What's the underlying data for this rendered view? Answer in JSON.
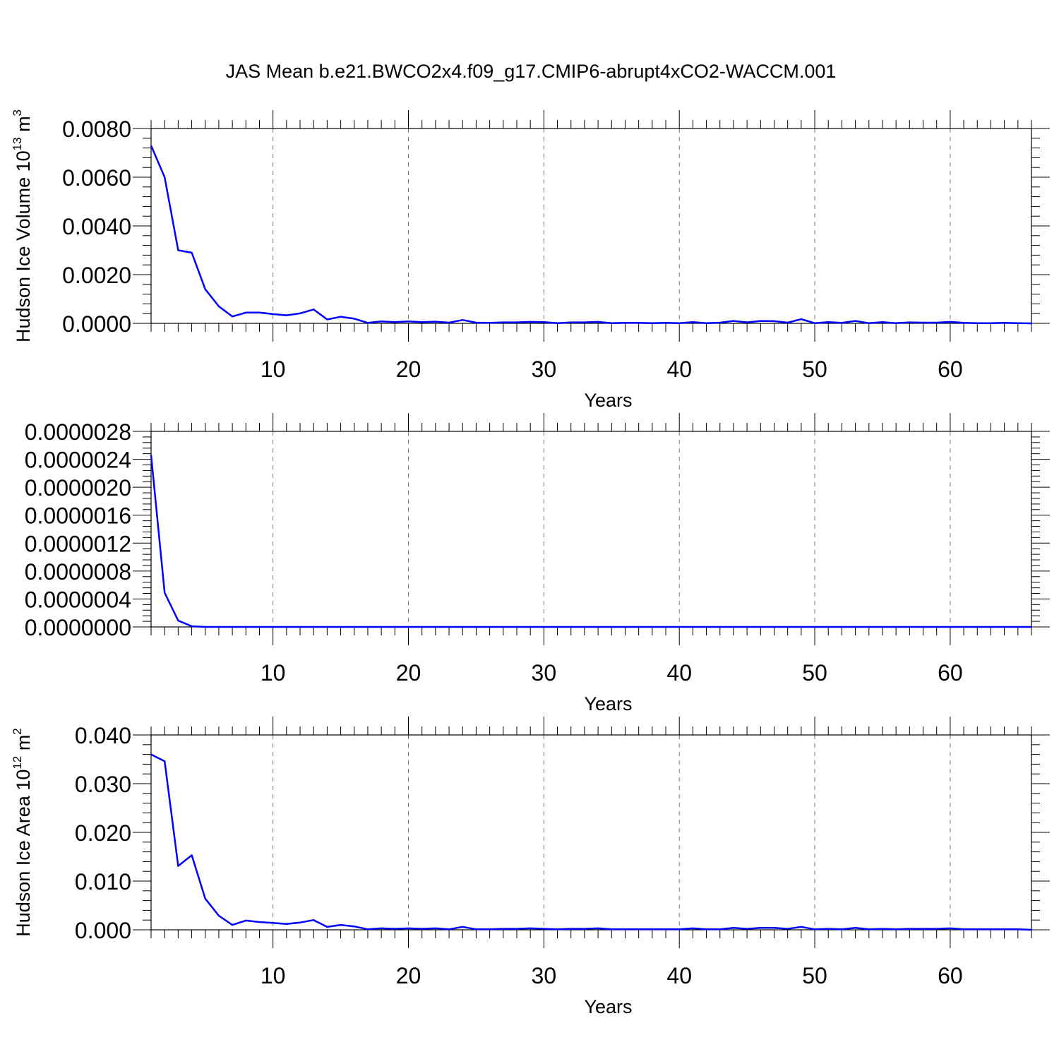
{
  "figure": {
    "title": "JAS Mean b.e21.BWCO2x4.f09_g17.CMIP6-abrupt4xCO2-WACCM.001",
    "line_color": "#0000ff"
  },
  "chart_data": [
    {
      "type": "line",
      "title": "",
      "xlabel": "Years",
      "ylabel": "Hudson Ice Volume 10",
      "ylabel_exp": "13",
      "ylabel_unit": " m",
      "ylabel_unit_exp": "3",
      "xlim": [
        1,
        66
      ],
      "ylim": [
        0,
        0.008
      ],
      "xticks": [
        10,
        20,
        30,
        40,
        50,
        60
      ],
      "yticks": [
        0,
        0.002,
        0.004,
        0.006,
        0.008
      ],
      "ytick_labels": [
        "0.0000",
        "0.0020",
        "0.0040",
        "0.0060",
        "0.0080"
      ],
      "grid": "vertical dashed",
      "series": [
        {
          "x": [
            1,
            2,
            3,
            4,
            5,
            6,
            7,
            8,
            9,
            10,
            11,
            12,
            13,
            14,
            15,
            16,
            17,
            18,
            19,
            20,
            21,
            22,
            23,
            24,
            25,
            26,
            27,
            28,
            29,
            30,
            31,
            32,
            33,
            34,
            35,
            36,
            37,
            38,
            39,
            40,
            41,
            42,
            43,
            44,
            45,
            46,
            47,
            48,
            49,
            50,
            51,
            52,
            53,
            54,
            55,
            56,
            57,
            58,
            59,
            60,
            61,
            62,
            63,
            64,
            65,
            66
          ],
          "values": [
            0.0073,
            0.006,
            0.003,
            0.0029,
            0.0014,
            0.0007,
            0.00028,
            0.00044,
            0.00044,
            0.00038,
            0.00033,
            0.00041,
            0.00057,
            0.00016,
            0.00027,
            0.00019,
            2e-05,
            8e-05,
            5e-05,
            8e-05,
            5e-05,
            7e-05,
            3e-05,
            0.00014,
            3e-05,
            2e-05,
            4e-05,
            4e-05,
            6e-05,
            5e-05,
            1e-05,
            4e-05,
            4e-05,
            6e-05,
            1e-05,
            2e-05,
            2e-05,
            1e-05,
            2e-05,
            1e-05,
            5e-05,
            1e-05,
            3e-05,
            0.0001,
            4e-05,
            0.0001,
            9e-05,
            3e-05,
            0.00017,
            1e-05,
            5e-05,
            2e-05,
            0.0001,
            1e-05,
            5e-05,
            1e-05,
            4e-05,
            3e-05,
            3e-05,
            6e-05,
            2e-05,
            1e-05,
            1e-05,
            2e-05,
            1e-05,
            0.0
          ]
        }
      ]
    },
    {
      "type": "line",
      "title": "",
      "xlabel": "Years",
      "ylabel": "",
      "xlim": [
        1,
        66
      ],
      "ylim": [
        0,
        2.8e-06
      ],
      "xticks": [
        10,
        20,
        30,
        40,
        50,
        60
      ],
      "yticks": [
        0,
        4e-07,
        8e-07,
        1.2e-06,
        1.6e-06,
        2e-06,
        2.4e-06,
        2.8e-06
      ],
      "ytick_labels": [
        "0.0000000",
        "0.0000004",
        "0.0000008",
        "0.0000012",
        "0.0000016",
        "0.0000020",
        "0.0000024",
        "0.0000028"
      ],
      "grid": "vertical dashed",
      "series": [
        {
          "x": [
            1,
            2,
            3,
            4,
            5,
            6,
            7,
            8,
            9,
            10,
            11,
            12,
            13,
            14,
            15,
            16,
            17,
            18,
            19,
            20,
            21,
            22,
            23,
            24,
            25,
            26,
            27,
            28,
            29,
            30,
            31,
            32,
            33,
            34,
            35,
            36,
            37,
            38,
            39,
            40,
            41,
            42,
            43,
            44,
            45,
            46,
            47,
            48,
            49,
            50,
            51,
            52,
            53,
            54,
            55,
            56,
            57,
            58,
            59,
            60,
            61,
            62,
            63,
            64,
            65,
            66
          ],
          "values": [
            2.46e-06,
            4.9e-07,
            9e-08,
            1e-08,
            0.0,
            0.0,
            0.0,
            0.0,
            0.0,
            0.0,
            0.0,
            0.0,
            0.0,
            0.0,
            0.0,
            0.0,
            0.0,
            0.0,
            0.0,
            0.0,
            0.0,
            0.0,
            0.0,
            0.0,
            0.0,
            0.0,
            0.0,
            0.0,
            0.0,
            0.0,
            0.0,
            0.0,
            0.0,
            0.0,
            0.0,
            0.0,
            0.0,
            0.0,
            0.0,
            0.0,
            0.0,
            0.0,
            0.0,
            0.0,
            0.0,
            0.0,
            0.0,
            0.0,
            0.0,
            0.0,
            0.0,
            0.0,
            0.0,
            0.0,
            0.0,
            0.0,
            0.0,
            0.0,
            0.0,
            0.0,
            0.0,
            0.0,
            0.0,
            0.0,
            0.0,
            0.0
          ]
        }
      ]
    },
    {
      "type": "line",
      "title": "",
      "xlabel": "Years",
      "ylabel": "Hudson Ice Area 10",
      "ylabel_exp": "12",
      "ylabel_unit": " m",
      "ylabel_unit_exp": "2",
      "xlim": [
        1,
        66
      ],
      "ylim": [
        0,
        0.04
      ],
      "xticks": [
        10,
        20,
        30,
        40,
        50,
        60
      ],
      "yticks": [
        0,
        0.01,
        0.02,
        0.03,
        0.04
      ],
      "ytick_labels": [
        "0.000",
        "0.010",
        "0.020",
        "0.030",
        "0.040"
      ],
      "grid": "vertical dashed",
      "series": [
        {
          "x": [
            1,
            2,
            3,
            4,
            5,
            6,
            7,
            8,
            9,
            10,
            11,
            12,
            13,
            14,
            15,
            16,
            17,
            18,
            19,
            20,
            21,
            22,
            23,
            24,
            25,
            26,
            27,
            28,
            29,
            30,
            31,
            32,
            33,
            34,
            35,
            36,
            37,
            38,
            39,
            40,
            41,
            42,
            43,
            44,
            45,
            46,
            47,
            48,
            49,
            50,
            51,
            52,
            53,
            54,
            55,
            56,
            57,
            58,
            59,
            60,
            61,
            62,
            63,
            64,
            65,
            66
          ],
          "values": [
            0.036,
            0.0346,
            0.0131,
            0.0153,
            0.0064,
            0.0029,
            0.001,
            0.0019,
            0.0016,
            0.0014,
            0.0012,
            0.0015,
            0.002,
            0.0006,
            0.001,
            0.0007,
            0.0001,
            0.0003,
            0.0002,
            0.0003,
            0.0002,
            0.0003,
            0.0001,
            0.0006,
            0.0001,
            0.0001,
            0.0002,
            0.0002,
            0.0003,
            0.0002,
            0.0001,
            0.0002,
            0.0002,
            0.0003,
            0.0001,
            0.0001,
            0.0001,
            0.0001,
            0.0001,
            0.0001,
            0.0003,
            0.0001,
            0.0001,
            0.0004,
            0.0002,
            0.0004,
            0.0004,
            0.0002,
            0.0006,
            0.0001,
            0.0002,
            0.0001,
            0.0004,
            0.0001,
            0.0002,
            0.0001,
            0.0002,
            0.0002,
            0.0002,
            0.0003,
            0.0001,
            0.0001,
            0.0001,
            0.0001,
            0.0001,
            0.0
          ]
        }
      ]
    }
  ]
}
